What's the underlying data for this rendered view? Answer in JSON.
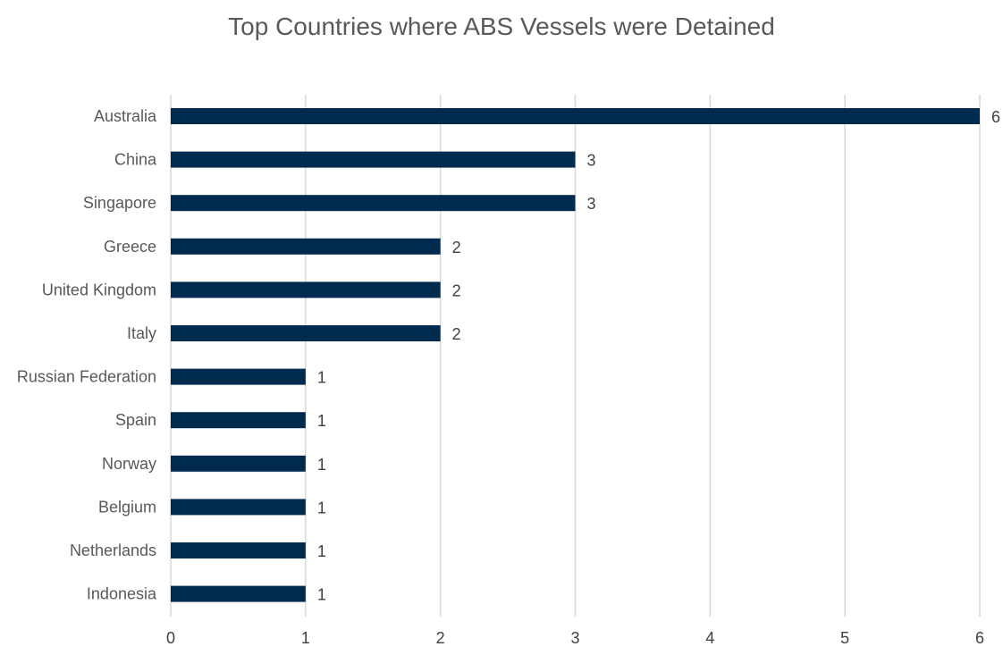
{
  "chart_data": {
    "type": "bar",
    "orientation": "horizontal",
    "title": "Top Countries where ABS Vessels were Detained",
    "xlabel": "",
    "ylabel": "",
    "categories": [
      "Australia",
      "China",
      "Singapore",
      "Greece",
      "United Kingdom",
      "Italy",
      "Russian Federation",
      "Spain",
      "Norway",
      "Belgium",
      "Netherlands",
      "Indonesia"
    ],
    "values": [
      6,
      3,
      3,
      2,
      2,
      2,
      1,
      1,
      1,
      1,
      1,
      1
    ],
    "xlim": [
      0,
      6
    ],
    "xticks": [
      "0",
      "1",
      "2",
      "3",
      "4",
      "5",
      "6"
    ],
    "grid": "vertical",
    "legend": "none",
    "data_labels": true,
    "bar_color": "#002a4e",
    "grid_color": "#d9d9d9"
  }
}
